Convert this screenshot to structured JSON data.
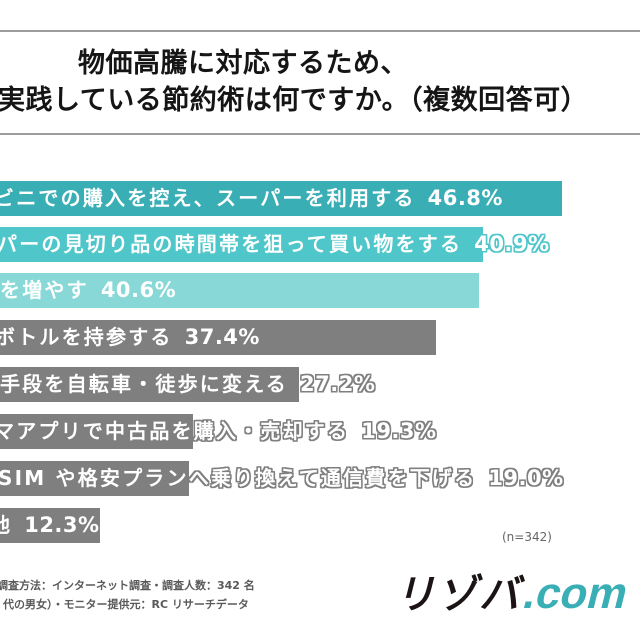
{
  "title": {
    "line1": "物価高騰に対応するため、",
    "line2": "実践している節約術は何ですか。（複数回答可）"
  },
  "chart_data": {
    "type": "bar",
    "orientation": "horizontal",
    "title": "物価高騰に対応するため、実践している節約術は何ですか。（複数回答可）",
    "categories": [
      "ビニでの購入を控え、スーパーを利用する",
      "パーの見切り品の時間帯を狙って買い物をする",
      "を増やす",
      "ボトルを持参する",
      "手段を自転車・徒歩に変える",
      "マアプリで中古品を購入・売却する",
      "SIM や格安プランへ乗り換えて通信費を下げる",
      "他"
    ],
    "values": [
      46.8,
      40.9,
      40.6,
      37.4,
      27.2,
      19.3,
      19.0,
      12.3
    ],
    "value_labels": [
      "46.8%",
      "40.9%",
      "40.6%",
      "37.4%",
      "27.2%",
      "19.3%",
      "19.0%",
      "12.3%"
    ],
    "colors": [
      "#3aaeb5",
      "#4fc6ca",
      "#88d8d8",
      "#7f7f7f",
      "#7f7f7f",
      "#7f7f7f",
      "#7f7f7f",
      "#7f7f7f"
    ],
    "unit": "%",
    "xlabel": "",
    "ylabel": "",
    "grid": false,
    "legend": null,
    "sample_size": "(n=342)"
  },
  "sample_size": "(n=342)",
  "footnote": {
    "line1": "調査方法：インターネット調査・調査人数：342 名",
    "line2": "代の男女）・モニター提供元：RC リサーチデータ"
  },
  "logo": {
    "main": "リゾバ",
    "suffix": ".com"
  }
}
